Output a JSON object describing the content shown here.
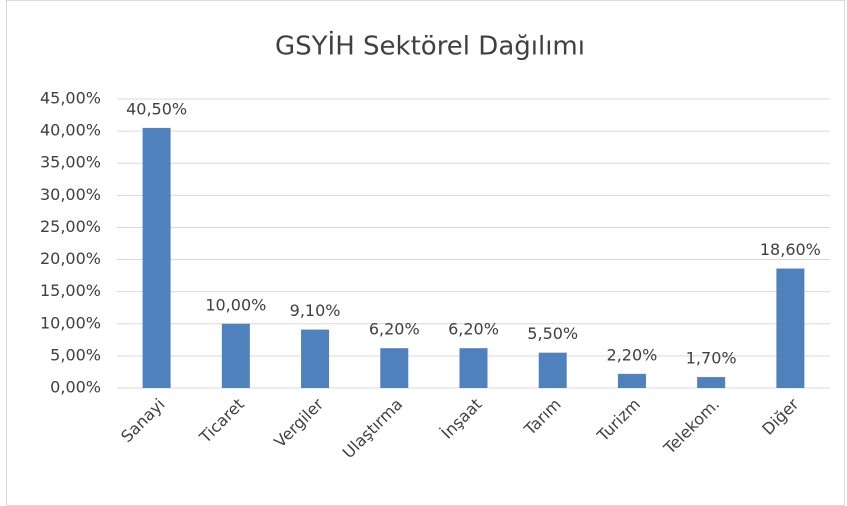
{
  "chart_data": {
    "type": "bar",
    "title": "GSYİH Sektörel Dağılımı",
    "categories": [
      "Sanayi",
      "Ticaret",
      "Vergiler",
      "Ulaştırma",
      "İnşaat",
      "Tarım",
      "Turizm",
      "Telekom.",
      "Diğer"
    ],
    "values": [
      40.5,
      10,
      9.1,
      6.2,
      6.2,
      5.5,
      2.2,
      1.7,
      18.6
    ],
    "value_labels": [
      "40,50%",
      "10,00%",
      "9,10%",
      "6,20%",
      "6,20%",
      "5,50%",
      "2,20%",
      "1,70%",
      "18,60%"
    ],
    "color": "#4f81bd",
    "ylim": [
      0,
      45
    ],
    "yticks": [
      {
        "value": 0,
        "label": "0,00%"
      },
      {
        "value": 5,
        "label": "5,00%"
      },
      {
        "value": 10,
        "label": "10,00%"
      },
      {
        "value": 15,
        "label": "15,00%"
      },
      {
        "value": 20,
        "label": "20,00%"
      },
      {
        "value": 25,
        "label": "25,00%"
      },
      {
        "value": 30,
        "label": "30,00%"
      },
      {
        "value": 35,
        "label": "35,00%"
      },
      {
        "value": 40,
        "label": "40,00%"
      },
      {
        "value": 45,
        "label": "45,00%"
      }
    ],
    "grid": true
  }
}
